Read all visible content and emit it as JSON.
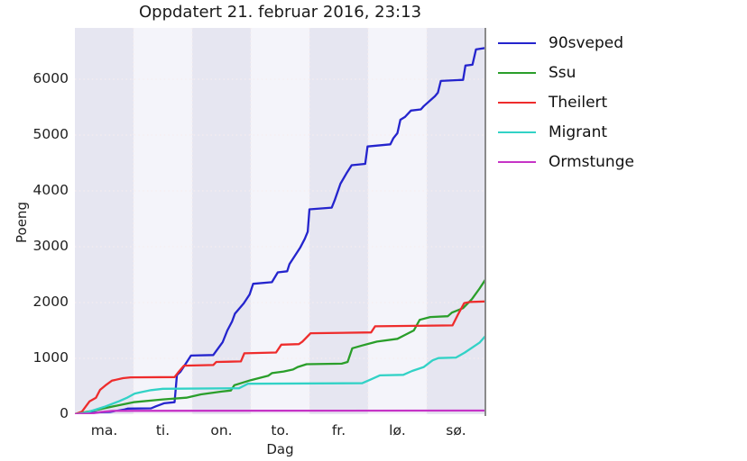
{
  "title": "Oppdatert 21. februar 2016, 23:13",
  "chart_data": {
    "type": "line",
    "title": "Oppdatert 21. februar 2016, 23:13",
    "xlabel": "Dag",
    "ylabel": "Poeng",
    "x_tick_labels": [
      "ma.",
      "ti.",
      "on.",
      "to.",
      "fr.",
      "lø.",
      "sø."
    ],
    "y_tick_labels": [
      "0",
      "1000",
      "2000",
      "3000",
      "4000",
      "5000",
      "6000"
    ],
    "y_tick_values": [
      0,
      1000,
      2000,
      3000,
      4000,
      5000,
      6000
    ],
    "xlim_days": [
      0,
      7
    ],
    "ylim": [
      0,
      6920
    ],
    "grid": "dotted",
    "legend_position": "outside-right",
    "layout": {
      "band_color_dark": "#e6e6f1",
      "band_color_light": "#f4f4fa",
      "grid_color": "#f6edef",
      "right_spine_color": "#8a8a8a"
    },
    "series": [
      {
        "name": "90sveped",
        "color": "#2424cd",
        "points": [
          [
            0,
            0
          ],
          [
            0.35,
            30
          ],
          [
            0.6,
            40
          ],
          [
            0.85,
            85
          ],
          [
            0.9,
            100
          ],
          [
            1.3,
            105
          ],
          [
            1.38,
            140
          ],
          [
            1.52,
            195
          ],
          [
            1.7,
            215
          ],
          [
            1.74,
            700
          ],
          [
            1.8,
            760
          ],
          [
            1.85,
            840
          ],
          [
            1.91,
            935
          ],
          [
            1.98,
            1050
          ],
          [
            2.36,
            1060
          ],
          [
            2.45,
            1190
          ],
          [
            2.52,
            1290
          ],
          [
            2.6,
            1500
          ],
          [
            2.68,
            1660
          ],
          [
            2.73,
            1800
          ],
          [
            2.88,
            1985
          ],
          [
            2.98,
            2145
          ],
          [
            3.04,
            2335
          ],
          [
            3.36,
            2365
          ],
          [
            3.46,
            2540
          ],
          [
            3.62,
            2560
          ],
          [
            3.66,
            2690
          ],
          [
            3.76,
            2850
          ],
          [
            3.84,
            2980
          ],
          [
            3.92,
            3140
          ],
          [
            3.97,
            3270
          ],
          [
            4.0,
            3670
          ],
          [
            4.38,
            3700
          ],
          [
            4.43,
            3830
          ],
          [
            4.53,
            4130
          ],
          [
            4.63,
            4310
          ],
          [
            4.72,
            4460
          ],
          [
            4.95,
            4485
          ],
          [
            4.99,
            4795
          ],
          [
            5.38,
            4835
          ],
          [
            5.43,
            4940
          ],
          [
            5.5,
            5035
          ],
          [
            5.55,
            5275
          ],
          [
            5.63,
            5325
          ],
          [
            5.73,
            5440
          ],
          [
            5.9,
            5460
          ],
          [
            5.95,
            5520
          ],
          [
            6.14,
            5695
          ],
          [
            6.19,
            5760
          ],
          [
            6.24,
            5970
          ],
          [
            6.62,
            5990
          ],
          [
            6.66,
            6245
          ],
          [
            6.78,
            6260
          ],
          [
            6.84,
            6535
          ],
          [
            7.0,
            6560
          ]
        ]
      },
      {
        "name": "Ssu",
        "color": "#2a9e2a",
        "points": [
          [
            0,
            0
          ],
          [
            0.3,
            60
          ],
          [
            0.7,
            150
          ],
          [
            1.0,
            215
          ],
          [
            1.5,
            265
          ],
          [
            1.9,
            295
          ],
          [
            2.15,
            355
          ],
          [
            2.5,
            405
          ],
          [
            2.66,
            425
          ],
          [
            2.72,
            520
          ],
          [
            3.0,
            610
          ],
          [
            3.3,
            690
          ],
          [
            3.36,
            735
          ],
          [
            3.56,
            765
          ],
          [
            3.72,
            800
          ],
          [
            3.8,
            845
          ],
          [
            3.95,
            895
          ],
          [
            4.55,
            905
          ],
          [
            4.65,
            935
          ],
          [
            4.73,
            1180
          ],
          [
            4.9,
            1230
          ],
          [
            5.15,
            1300
          ],
          [
            5.5,
            1350
          ],
          [
            5.63,
            1420
          ],
          [
            5.78,
            1500
          ],
          [
            5.88,
            1690
          ],
          [
            6.06,
            1740
          ],
          [
            6.36,
            1755
          ],
          [
            6.43,
            1820
          ],
          [
            6.62,
            1900
          ],
          [
            6.77,
            2060
          ],
          [
            6.9,
            2250
          ],
          [
            7.0,
            2410
          ]
        ]
      },
      {
        "name": "Theilert",
        "color": "#ee2c2c",
        "points": [
          [
            0,
            0
          ],
          [
            0.12,
            45
          ],
          [
            0.25,
            230
          ],
          [
            0.36,
            295
          ],
          [
            0.43,
            435
          ],
          [
            0.52,
            515
          ],
          [
            0.63,
            600
          ],
          [
            0.82,
            645
          ],
          [
            0.95,
            660
          ],
          [
            1.7,
            665
          ],
          [
            1.76,
            745
          ],
          [
            1.86,
            870
          ],
          [
            2.36,
            880
          ],
          [
            2.41,
            935
          ],
          [
            2.83,
            945
          ],
          [
            2.89,
            1090
          ],
          [
            3.43,
            1105
          ],
          [
            3.52,
            1245
          ],
          [
            3.82,
            1255
          ],
          [
            3.88,
            1300
          ],
          [
            4.02,
            1450
          ],
          [
            5.05,
            1465
          ],
          [
            5.12,
            1575
          ],
          [
            6.44,
            1590
          ],
          [
            6.54,
            1800
          ],
          [
            6.64,
            1990
          ],
          [
            6.74,
            2010
          ],
          [
            7.0,
            2020
          ]
        ]
      },
      {
        "name": "Migrant",
        "color": "#32d2c6",
        "points": [
          [
            0,
            0
          ],
          [
            0.2,
            30
          ],
          [
            0.5,
            130
          ],
          [
            0.75,
            230
          ],
          [
            0.9,
            300
          ],
          [
            1.02,
            370
          ],
          [
            1.15,
            400
          ],
          [
            1.3,
            430
          ],
          [
            1.5,
            455
          ],
          [
            2.8,
            465
          ],
          [
            2.95,
            545
          ],
          [
            4.9,
            555
          ],
          [
            5.05,
            625
          ],
          [
            5.2,
            695
          ],
          [
            5.6,
            705
          ],
          [
            5.75,
            775
          ],
          [
            5.95,
            845
          ],
          [
            6.1,
            965
          ],
          [
            6.2,
            1005
          ],
          [
            6.5,
            1015
          ],
          [
            6.65,
            1105
          ],
          [
            6.9,
            1280
          ],
          [
            7.0,
            1400
          ]
        ]
      },
      {
        "name": "Ormstunge",
        "color": "#c634c6",
        "points": [
          [
            0,
            0
          ],
          [
            0.3,
            15
          ],
          [
            0.45,
            40
          ],
          [
            0.65,
            60
          ],
          [
            7.0,
            65
          ]
        ]
      }
    ],
    "legend": [
      {
        "label": "90sveped",
        "color": "#2424cd"
      },
      {
        "label": "Ssu",
        "color": "#2a9e2a"
      },
      {
        "label": "Theilert",
        "color": "#ee2c2c"
      },
      {
        "label": "Migrant",
        "color": "#32d2c6"
      },
      {
        "label": "Ormstunge",
        "color": "#c634c6"
      }
    ]
  }
}
